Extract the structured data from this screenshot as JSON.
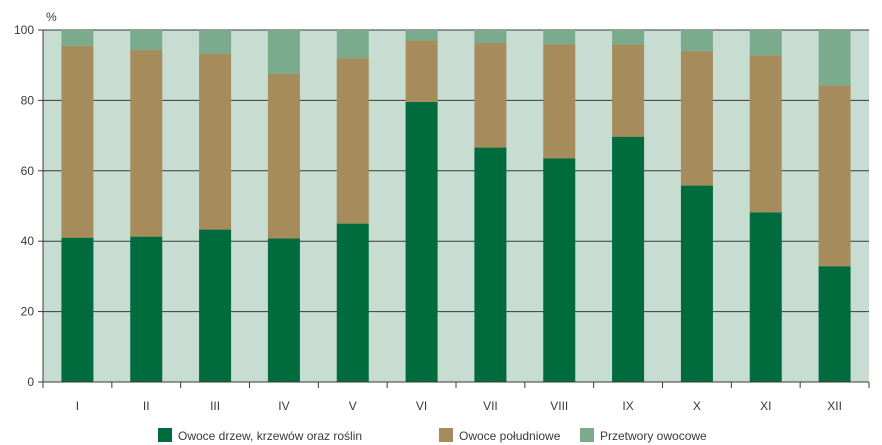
{
  "chart_data": {
    "type": "bar",
    "stacked": true,
    "percent": true,
    "y_unit": "%",
    "categories": [
      "I",
      "II",
      "III",
      "IV",
      "V",
      "VI",
      "VII",
      "VIII",
      "IX",
      "X",
      "XI",
      "XII"
    ],
    "series": [
      {
        "name": "Owoce drzew, krzewów oraz roślin",
        "color": "#006b3c",
        "values": [
          41,
          41.3,
          43.3,
          40.8,
          45,
          79.6,
          66.6,
          63.5,
          69.7,
          55.8,
          48.2,
          32.9
        ]
      },
      {
        "name": "Owoce południowe",
        "color": "#a68b5b",
        "values": [
          54.5,
          53,
          50,
          46.8,
          47,
          17.4,
          29.7,
          32.5,
          26.2,
          38.1,
          44.6,
          51.4
        ]
      },
      {
        "name": "Przetwory owocowe",
        "color": "#7aab8c",
        "values": [
          4.5,
          5.7,
          6.7,
          12.4,
          8,
          3,
          3.7,
          4,
          4.1,
          6.1,
          7.2,
          15.7
        ]
      }
    ],
    "ylim": [
      0,
      100
    ],
    "yticks": [
      0,
      20,
      40,
      60,
      80,
      100
    ],
    "grid": true,
    "legend_position": "bottom",
    "plot_background": "#c8ddd2"
  }
}
